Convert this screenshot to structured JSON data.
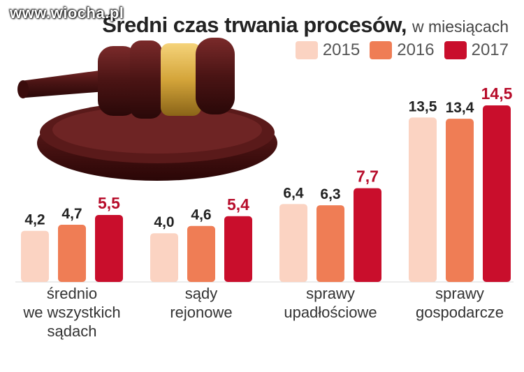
{
  "watermark": "www.wiocha.pl",
  "chart_data": {
    "type": "bar",
    "title": "Średni czas trwania procesów,",
    "subtitle": "w miesiącach",
    "categories": [
      [
        "średnio",
        "we wszystkich",
        "sądach"
      ],
      [
        "sądy",
        "rejonowe"
      ],
      [
        "sprawy",
        "upadłościowe"
      ],
      [
        "sprawy",
        "gospodarcze"
      ]
    ],
    "series": [
      {
        "name": "2015",
        "values": [
          4.2,
          4.0,
          6.4,
          13.5
        ],
        "labels": [
          "4,2",
          "4,0",
          "6,4",
          "13,5"
        ],
        "color": "#fbd3c2"
      },
      {
        "name": "2016",
        "values": [
          4.7,
          4.6,
          6.3,
          13.4
        ],
        "labels": [
          "4,7",
          "4,6",
          "6,3",
          "13,4"
        ],
        "color": "#ef7d55"
      },
      {
        "name": "2017",
        "values": [
          5.5,
          5.4,
          7.7,
          14.5
        ],
        "labels": [
          "5,5",
          "5,4",
          "7,7",
          "14,5"
        ],
        "color": "#c90e2c"
      }
    ],
    "label_colors": [
      "#222222",
      "#222222",
      "#b70c2a"
    ],
    "legend_position": "top-right",
    "grid": false,
    "ylim": [
      0,
      15
    ]
  }
}
